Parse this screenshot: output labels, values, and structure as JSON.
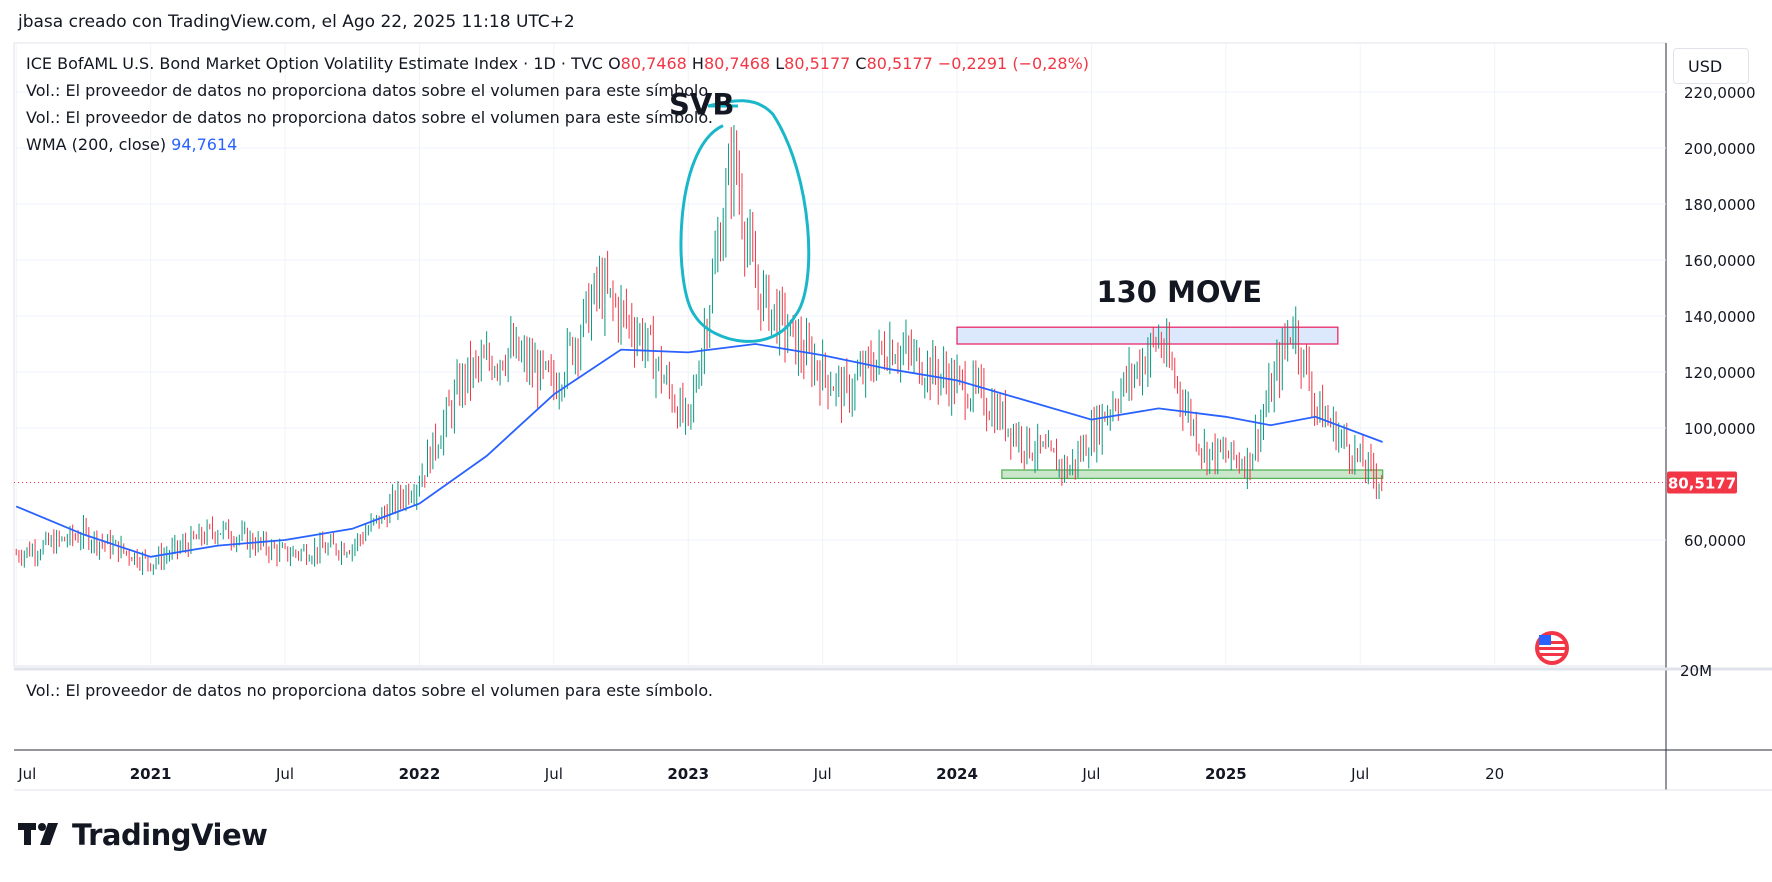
{
  "header": {
    "attribution": "jbasa creado con TradingView.com, el Ago 22, 2025 11:18 UTC+2"
  },
  "legend": {
    "symbol": "ICE BofAML U.S. Bond Market Option Volatility Estimate Index · 1D · TVC",
    "o_label": "O",
    "o_value": "80,7468",
    "h_label": "H",
    "h_value": "80,7468",
    "l_label": "L",
    "l_value": "80,5177",
    "c_label": "C",
    "c_value": "80,5177",
    "change": "−0,2291 (−0,28%)",
    "vol_line": "Vol.: El proveedor de datos no proporciona datos sobre el volumen para este símbolo.",
    "wma_label": "WMA (200, close)",
    "wma_value": "94,7614"
  },
  "volume_pane": {
    "text": "Vol.: El proveedor de datos no proporciona datos sobre el volumen para este símbolo.",
    "axis_label": "20M"
  },
  "toolbar": {
    "currency": "USD"
  },
  "brand": {
    "name": "TradingView"
  },
  "colors": {
    "up": "#089981",
    "down": "#f23645",
    "wma": "#2962ff",
    "svb_circle": "#19b7c9",
    "resistance_fill": "#dbe7fb",
    "resistance_stroke": "#e91e63",
    "support_fill": "#c8e6c9",
    "support_stroke": "#4caf50"
  },
  "chart_data": {
    "type": "line",
    "series": [
      {
        "name": "ICE BofAML U.S. Bond Market Option Volatility Estimate Index",
        "x": [
          "2020-07",
          "2020-10",
          "2021-01",
          "2021-04",
          "2021-07",
          "2021-10",
          "2022-01",
          "2022-03",
          "2022-05",
          "2022-07",
          "2022-09",
          "2022-11",
          "2023-01",
          "2023-03",
          "2023-04",
          "2023-06",
          "2023-08",
          "2023-10",
          "2023-12",
          "2024-02",
          "2024-04",
          "2024-06",
          "2024-08",
          "2024-10",
          "2024-12",
          "2025-02",
          "2025-04",
          "2025-05",
          "2025-07",
          "2025-08"
        ],
        "values": [
          55,
          62,
          52,
          64,
          55,
          58,
          82,
          118,
          128,
          115,
          150,
          132,
          100,
          198,
          150,
          128,
          112,
          130,
          120,
          112,
          95,
          85,
          110,
          132,
          92,
          88,
          138,
          108,
          88,
          80.5177
        ]
      },
      {
        "name": "WMA (200, close)",
        "x": [
          "2020-07",
          "2020-10",
          "2021-01",
          "2021-04",
          "2021-07",
          "2021-10",
          "2022-01",
          "2022-04",
          "2022-07",
          "2022-10",
          "2023-01",
          "2023-04",
          "2023-07",
          "2023-10",
          "2024-01",
          "2024-04",
          "2024-07",
          "2024-10",
          "2025-01",
          "2025-03",
          "2025-05",
          "2025-08"
        ],
        "values": [
          72,
          62,
          54,
          58,
          60,
          64,
          73,
          90,
          112,
          128,
          127,
          130,
          126,
          121,
          117,
          110,
          103,
          107,
          104,
          101,
          104,
          95
        ]
      }
    ],
    "last_price_label": "80,5177",
    "y_axis": {
      "ticks": [
        "220,0000",
        "200,0000",
        "180,0000",
        "160,0000",
        "140,0000",
        "120,0000",
        "100,0000",
        "60,0000"
      ],
      "ylim": [
        46,
        230
      ]
    },
    "x_axis": {
      "ticks": [
        "Jul",
        "2021",
        "Jul",
        "2022",
        "Jul",
        "2023",
        "Jul",
        "2024",
        "Jul",
        "2025",
        "Jul",
        "20"
      ]
    },
    "annotations": [
      {
        "text": "SVB",
        "kind": "circle around March 2023 spike"
      },
      {
        "text": "130 MOVE",
        "kind": "resistance zone",
        "y_range": [
          130,
          136
        ],
        "x_range": [
          "2024-01",
          "2025-06"
        ]
      },
      {
        "kind": "support zone",
        "y_range": [
          82,
          85
        ],
        "x_range": [
          "2024-03",
          "2025-08"
        ]
      }
    ],
    "grid": true,
    "legend_position": "top-left"
  }
}
